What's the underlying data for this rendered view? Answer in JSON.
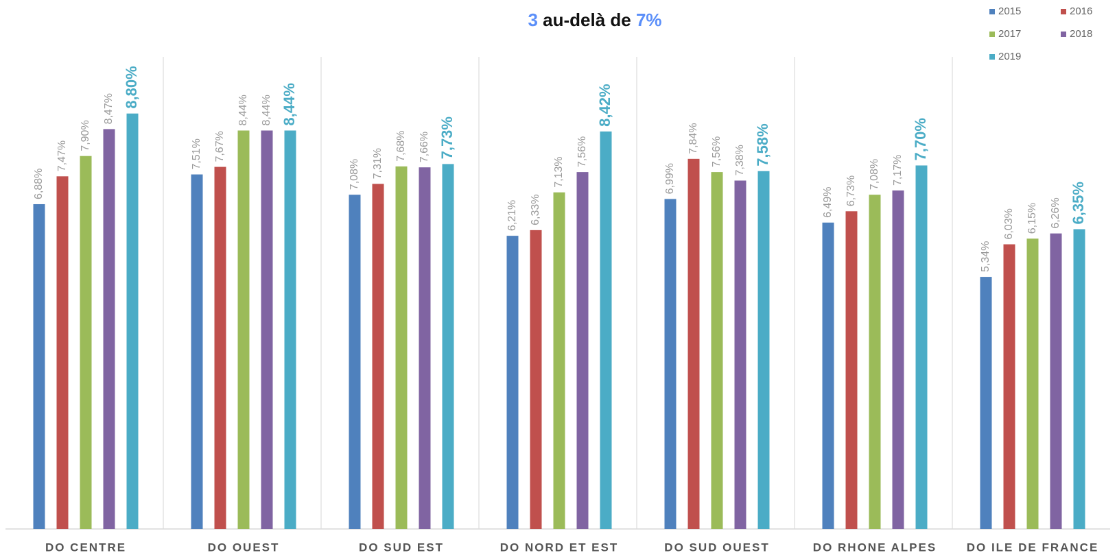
{
  "chart_data": {
    "type": "bar",
    "title_parts": [
      {
        "text": "3",
        "color": "#5b8ff9"
      },
      {
        "text": " au-delà de ",
        "color": "#111111"
      },
      {
        "text": "7%",
        "color": "#5b8ff9"
      }
    ],
    "categories": [
      "DO CENTRE",
      "DO OUEST",
      "DO SUD EST",
      "DO NORD ET EST",
      "DO SUD OUEST",
      "DO RHONE ALPES",
      "DO ILE DE FRANCE"
    ],
    "ylim": [
      0,
      10
    ],
    "series": [
      {
        "name": "2015",
        "color": "#4f81bd",
        "values": [
          6.88,
          7.51,
          7.08,
          6.21,
          6.99,
          6.49,
          5.34
        ],
        "value_labels": [
          "6,88%",
          "7,51%",
          "7,08%",
          "6,21%",
          "6,99%",
          "6,49%",
          "5,34%"
        ]
      },
      {
        "name": "2016",
        "color": "#c0504d",
        "values": [
          7.47,
          7.67,
          7.31,
          6.33,
          7.84,
          6.73,
          6.03
        ],
        "value_labels": [
          "7,47%",
          "7,67%",
          "7,31%",
          "6,33%",
          "7,84%",
          "6,73%",
          "6,03%"
        ]
      },
      {
        "name": "2017",
        "color": "#9bbb59",
        "values": [
          7.9,
          8.44,
          7.68,
          7.13,
          7.56,
          7.08,
          6.15
        ],
        "value_labels": [
          "7,90%",
          "8,44%",
          "7,68%",
          "7,13%",
          "7,56%",
          "7,08%",
          "6,15%"
        ]
      },
      {
        "name": "2018",
        "color": "#8064a2",
        "values": [
          8.47,
          8.44,
          7.66,
          7.56,
          7.38,
          7.17,
          6.26
        ],
        "value_labels": [
          "8,47%",
          "8,44%",
          "7,66%",
          "7,56%",
          "7,38%",
          "7,17%",
          "6,26%"
        ]
      },
      {
        "name": "2019",
        "color": "#4bacc6",
        "values": [
          8.8,
          8.44,
          7.73,
          8.42,
          7.58,
          7.7,
          6.35
        ],
        "value_labels": [
          "8,80%",
          "8,44%",
          "7,73%",
          "8,42%",
          "7,58%",
          "7,70%",
          "6,35%"
        ]
      }
    ]
  }
}
